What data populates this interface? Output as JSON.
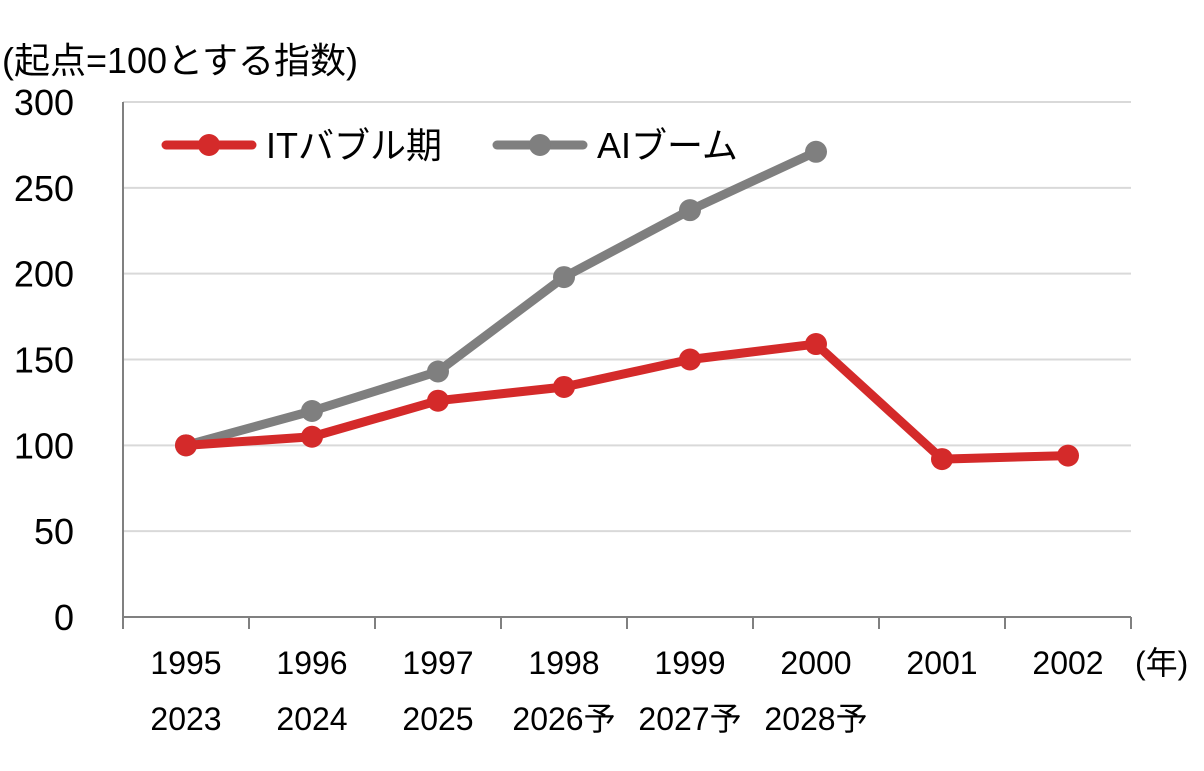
{
  "chart_data": {
    "type": "line",
    "ylabel": "(起点=100とする指数)",
    "xlabel": "(年)",
    "ylim": [
      0,
      300
    ],
    "yticks": [
      0,
      50,
      100,
      150,
      200,
      250,
      300
    ],
    "categories_row1": [
      "1995",
      "1996",
      "1997",
      "1998",
      "1999",
      "2000",
      "2001",
      "2002"
    ],
    "categories_row2": [
      "2023",
      "2024",
      "2025",
      "2026予",
      "2027予",
      "2028予",
      "",
      ""
    ],
    "grid": true,
    "legend_position": "top-left",
    "series": [
      {
        "name": "ITバブル期",
        "color": "#d42a2a",
        "values": [
          100,
          105,
          126,
          134,
          150,
          159,
          92,
          94
        ]
      },
      {
        "name": "AIブーム",
        "color": "#7f7f7f",
        "values": [
          100,
          120,
          143,
          198,
          237,
          271,
          null,
          null
        ]
      }
    ]
  }
}
